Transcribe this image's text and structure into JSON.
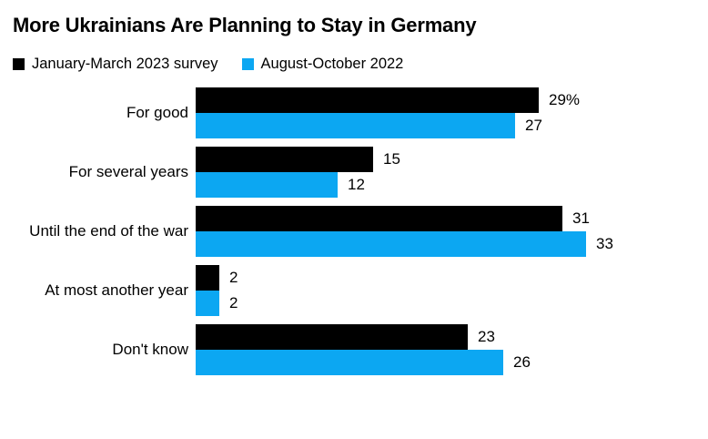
{
  "title": "More Ukrainians Are Planning to Stay in Germany",
  "legend": [
    {
      "label": "January-March 2023 survey",
      "color": "#000000"
    },
    {
      "label": "August-October 2022",
      "color": "#0ca7f2"
    }
  ],
  "chart_data": {
    "type": "bar",
    "orientation": "horizontal",
    "title": "More Ukrainians Are Planning to Stay in Germany",
    "xlabel": "",
    "ylabel": "",
    "xlim": [
      0,
      36
    ],
    "grid": false,
    "legend_position": "top",
    "unit": "percent",
    "categories": [
      "For good",
      "For several years",
      "Until the end of the war",
      "At most another year",
      "Don't know"
    ],
    "series": [
      {
        "name": "January-March 2023 survey",
        "color": "#000000",
        "values": [
          29,
          15,
          31,
          2,
          23
        ]
      },
      {
        "name": "August-October 2022",
        "color": "#0ca7f2",
        "values": [
          27,
          12,
          33,
          2,
          26
        ]
      }
    ],
    "value_labels": [
      [
        "29%",
        "15",
        "31",
        "2",
        "23"
      ],
      [
        "27",
        "12",
        "33",
        "2",
        "26"
      ]
    ]
  }
}
